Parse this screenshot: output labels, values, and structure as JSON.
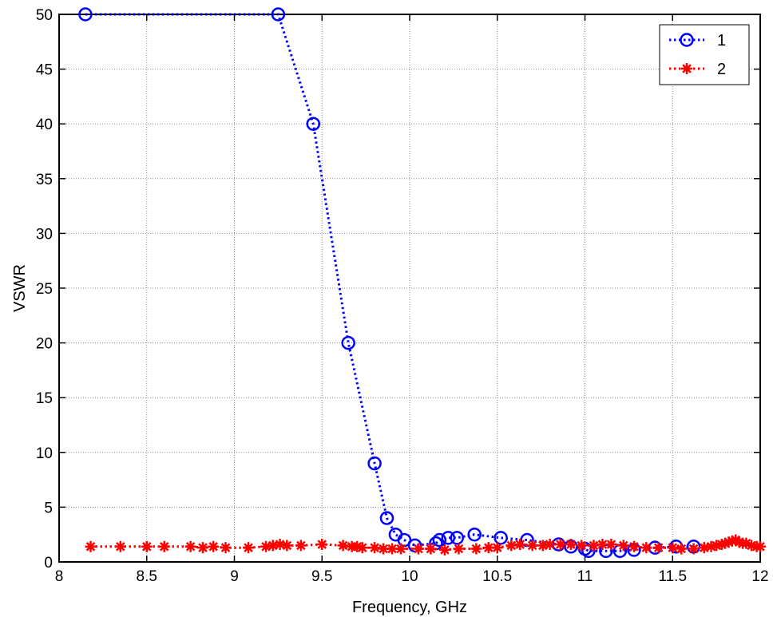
{
  "chart_data": {
    "type": "line",
    "title": "",
    "xlabel": "Frequency, GHz",
    "ylabel": "VSWR",
    "xlim": [
      8,
      12
    ],
    "ylim": [
      0,
      50
    ],
    "xticks": [
      8,
      8.5,
      9,
      9.5,
      10,
      10.5,
      11,
      11.5,
      12
    ],
    "yticks": [
      0,
      5,
      10,
      15,
      20,
      25,
      30,
      35,
      40,
      45,
      50
    ],
    "xtick_labels": [
      "8",
      "8.5",
      "9",
      "9.5",
      "10",
      "10.5",
      "11",
      "11.5",
      "12"
    ],
    "ytick_labels": [
      "0",
      "5",
      "10",
      "15",
      "20",
      "25",
      "30",
      "35",
      "40",
      "45",
      "50"
    ],
    "grid": true,
    "legend_position": "top-right",
    "series": [
      {
        "name": "1",
        "color": "#0000ff",
        "marker": "circle",
        "line": "dotted",
        "x": [
          8.15,
          9.25,
          9.45,
          9.65,
          9.8,
          9.87,
          9.92,
          9.97,
          10.03,
          10.15,
          10.17,
          10.22,
          10.27,
          10.37,
          10.52,
          10.67,
          10.85,
          10.92,
          11.0,
          11.02,
          11.12,
          11.2,
          11.28,
          11.4,
          11.52,
          11.62
        ],
        "y": [
          50,
          50,
          40,
          20,
          9,
          4,
          2.5,
          2,
          1.5,
          1.7,
          2.0,
          2.2,
          2.2,
          2.5,
          2.2,
          2.0,
          1.6,
          1.4,
          1.2,
          1.0,
          1.0,
          1.0,
          1.1,
          1.3,
          1.4,
          1.4
        ]
      },
      {
        "name": "2",
        "color": "#ff0000",
        "marker": "star",
        "line": "dotted",
        "x": [
          8.18,
          8.35,
          8.5,
          8.6,
          8.75,
          8.82,
          8.88,
          8.95,
          9.08,
          9.18,
          9.22,
          9.26,
          9.3,
          9.38,
          9.5,
          9.62,
          9.67,
          9.7,
          9.73,
          9.8,
          9.85,
          9.9,
          9.95,
          10.05,
          10.12,
          10.2,
          10.28,
          10.38,
          10.45,
          10.5,
          10.58,
          10.63,
          10.7,
          10.76,
          10.8,
          10.86,
          10.92,
          10.98,
          11.05,
          11.1,
          11.15,
          11.22,
          11.28,
          11.35,
          11.42,
          11.5,
          11.55,
          11.62,
          11.68,
          11.72,
          11.75,
          11.78,
          11.8,
          11.82,
          11.84,
          11.86,
          11.88,
          11.9,
          11.92,
          11.95,
          11.98,
          12.0
        ],
        "y": [
          1.4,
          1.4,
          1.4,
          1.4,
          1.4,
          1.3,
          1.4,
          1.3,
          1.3,
          1.4,
          1.5,
          1.6,
          1.5,
          1.5,
          1.6,
          1.5,
          1.4,
          1.4,
          1.3,
          1.3,
          1.2,
          1.2,
          1.2,
          1.2,
          1.2,
          1.1,
          1.2,
          1.2,
          1.3,
          1.3,
          1.5,
          1.6,
          1.5,
          1.5,
          1.6,
          1.6,
          1.6,
          1.5,
          1.5,
          1.6,
          1.6,
          1.5,
          1.4,
          1.3,
          1.3,
          1.3,
          1.2,
          1.2,
          1.3,
          1.4,
          1.5,
          1.6,
          1.7,
          1.8,
          1.9,
          2.0,
          1.8,
          1.7,
          1.7,
          1.5,
          1.4,
          1.4
        ]
      }
    ]
  }
}
